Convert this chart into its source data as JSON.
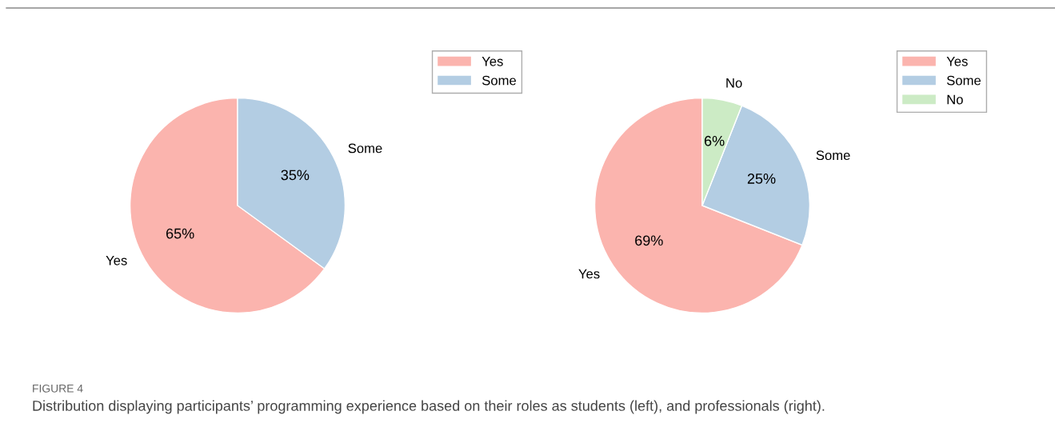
{
  "chart_data": [
    {
      "type": "pie",
      "categories": [
        "Yes",
        "Some"
      ],
      "values": [
        65,
        35
      ],
      "colors": [
        "#fbb4ae",
        "#b3cde3"
      ],
      "value_labels": [
        "65%",
        "35%"
      ],
      "legend": "top right",
      "annotations": [
        "FIGURE 4",
        "Distribution displaying participants’ programming experience based on their roles as students (left), and professionals (right)."
      ]
    },
    {
      "type": "pie",
      "categories": [
        "Yes",
        "Some",
        "No"
      ],
      "values": [
        69,
        25,
        6
      ],
      "colors": [
        "#fbb4ae",
        "#b3cde3",
        "#ccebc5"
      ],
      "value_labels": [
        "69%",
        "25%",
        "6%"
      ],
      "legend": "top right"
    }
  ]
}
